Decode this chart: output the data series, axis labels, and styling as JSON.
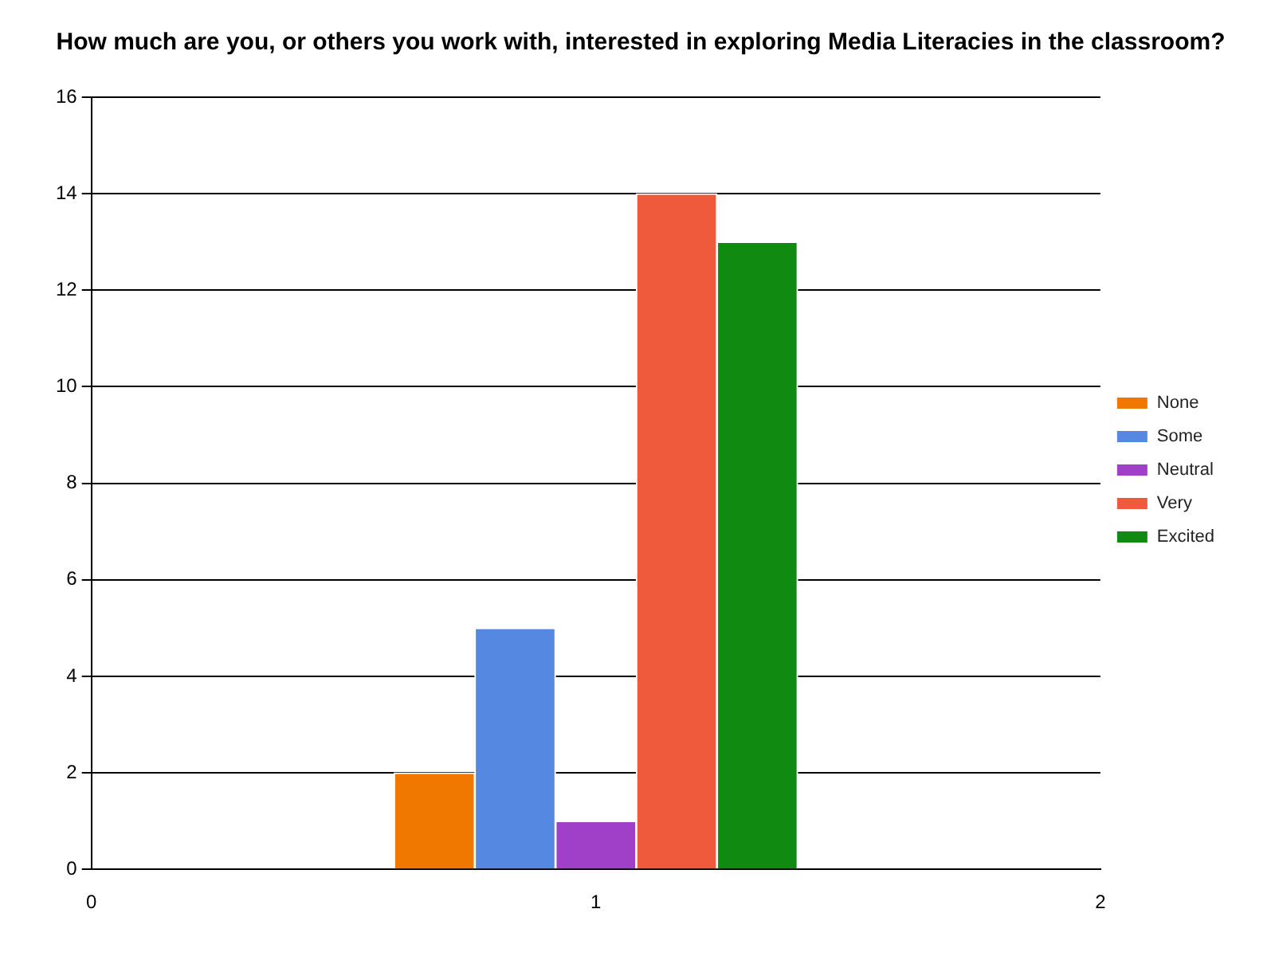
{
  "chart_data": {
    "type": "bar",
    "title": "How much are you, or others you work with, interested in exploring Media Literacies in the classroom?",
    "xlim": [
      0,
      2
    ],
    "xticks": [
      0,
      1,
      2
    ],
    "ylim": [
      0,
      16
    ],
    "yticks": [
      0,
      2,
      4,
      6,
      8,
      10,
      12,
      14,
      16
    ],
    "grid": "y",
    "legend": "right",
    "series": [
      {
        "name": "None",
        "color": "#f07800",
        "x": [
          0.68
        ],
        "values": [
          2
        ]
      },
      {
        "name": "Some",
        "color": "#5588e0",
        "x": [
          0.84
        ],
        "values": [
          5
        ]
      },
      {
        "name": "Neutral",
        "color": "#a040c8",
        "x": [
          1
        ],
        "values": [
          1
        ]
      },
      {
        "name": "Very",
        "color": "#f05a3c",
        "x": [
          1.16
        ],
        "values": [
          14
        ]
      },
      {
        "name": "Excited",
        "color": "#108a10",
        "x": [
          1.32
        ],
        "values": [
          13
        ]
      }
    ]
  }
}
